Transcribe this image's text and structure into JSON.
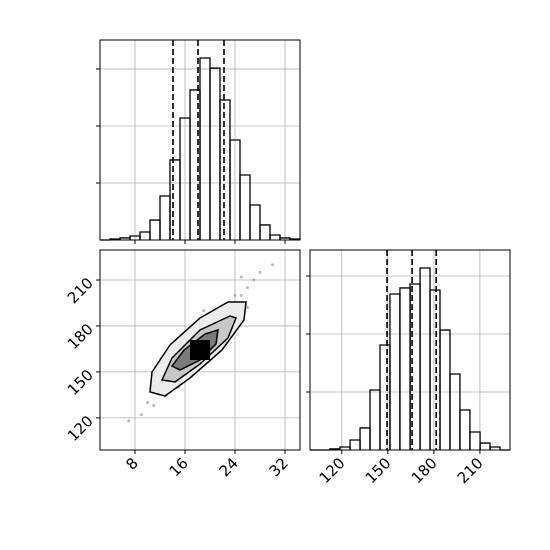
{
  "chart_data": [
    {
      "type": "histogram",
      "xlim": [
        2.4,
        34.4
      ],
      "ylim": [
        0,
        1754
      ],
      "xticks": [
        8,
        16,
        24,
        32
      ],
      "yticks": [
        500,
        1000,
        1500
      ],
      "show_xtick_labels": false,
      "show_ytick_labels": false,
      "bins": [
        2.4,
        4.0,
        5.6,
        7.2,
        8.8,
        10.4,
        12.0,
        13.6,
        15.2,
        16.8,
        18.4,
        20.0,
        21.6,
        23.2,
        24.8,
        26.4,
        28.0,
        29.6,
        31.2,
        32.8,
        34.4
      ],
      "counts": [
        0,
        9,
        18,
        35,
        70,
        175,
        386,
        702,
        1070,
        1316,
        1596,
        1508,
        1228,
        877,
        570,
        307,
        132,
        44,
        18,
        9
      ],
      "quantiles": [
        14.08,
        18.08,
        22.24
      ],
      "grid": true,
      "color": "#000000"
    },
    {
      "type": "scatter",
      "xlim": [
        2.4,
        34.4
      ],
      "ylim": [
        99,
        229.6
      ],
      "xticks": [
        8,
        16,
        24,
        32
      ],
      "yticks": [
        120,
        150,
        180,
        210
      ],
      "show_xtick_labels": true,
      "show_ytick_labels": true,
      "x": [
        10,
        12,
        13,
        14,
        15,
        16,
        16,
        17,
        17,
        18,
        18,
        19,
        19,
        20,
        20,
        21,
        22,
        22,
        23,
        24,
        25,
        26,
        27,
        11,
        9,
        28,
        14,
        21,
        15,
        23,
        12,
        24,
        26,
        7,
        30,
        13,
        20,
        17,
        25,
        19
      ],
      "y": [
        130,
        138,
        150,
        145,
        160,
        152,
        170,
        160,
        175,
        165,
        155,
        172,
        180,
        168,
        185,
        175,
        190,
        178,
        195,
        188,
        200,
        205,
        210,
        128,
        122,
        215,
        158,
        162,
        140,
        182,
        145,
        200,
        192,
        118,
        220,
        135,
        158,
        148,
        212,
        190
      ],
      "grid": true,
      "color": "#9a9a9a"
    },
    {
      "type": "histogram",
      "xlim": [
        99.3,
        229.6
      ],
      "ylim": [
        0,
        1724
      ],
      "xticks": [
        120,
        150,
        180,
        210
      ],
      "yticks": [
        500,
        1000,
        1500
      ],
      "show_xtick_labels": true,
      "show_ytick_labels": false,
      "bins": [
        99.3,
        105.8,
        112.3,
        118.8,
        125.4,
        131.9,
        138.4,
        144.9,
        151.4,
        157.9,
        164.5,
        171.0,
        177.5,
        184.0,
        190.5,
        197.0,
        203.5,
        210.1,
        216.6,
        223.1,
        229.6
      ],
      "counts": [
        0,
        0,
        9,
        26,
        86,
        190,
        517,
        905,
        1345,
        1397,
        1431,
        1569,
        1379,
        1034,
        655,
        345,
        155,
        60,
        26,
        0
      ],
      "quantiles": [
        149.5,
        165.8,
        181.5
      ],
      "grid": true,
      "color": "#000000"
    }
  ]
}
